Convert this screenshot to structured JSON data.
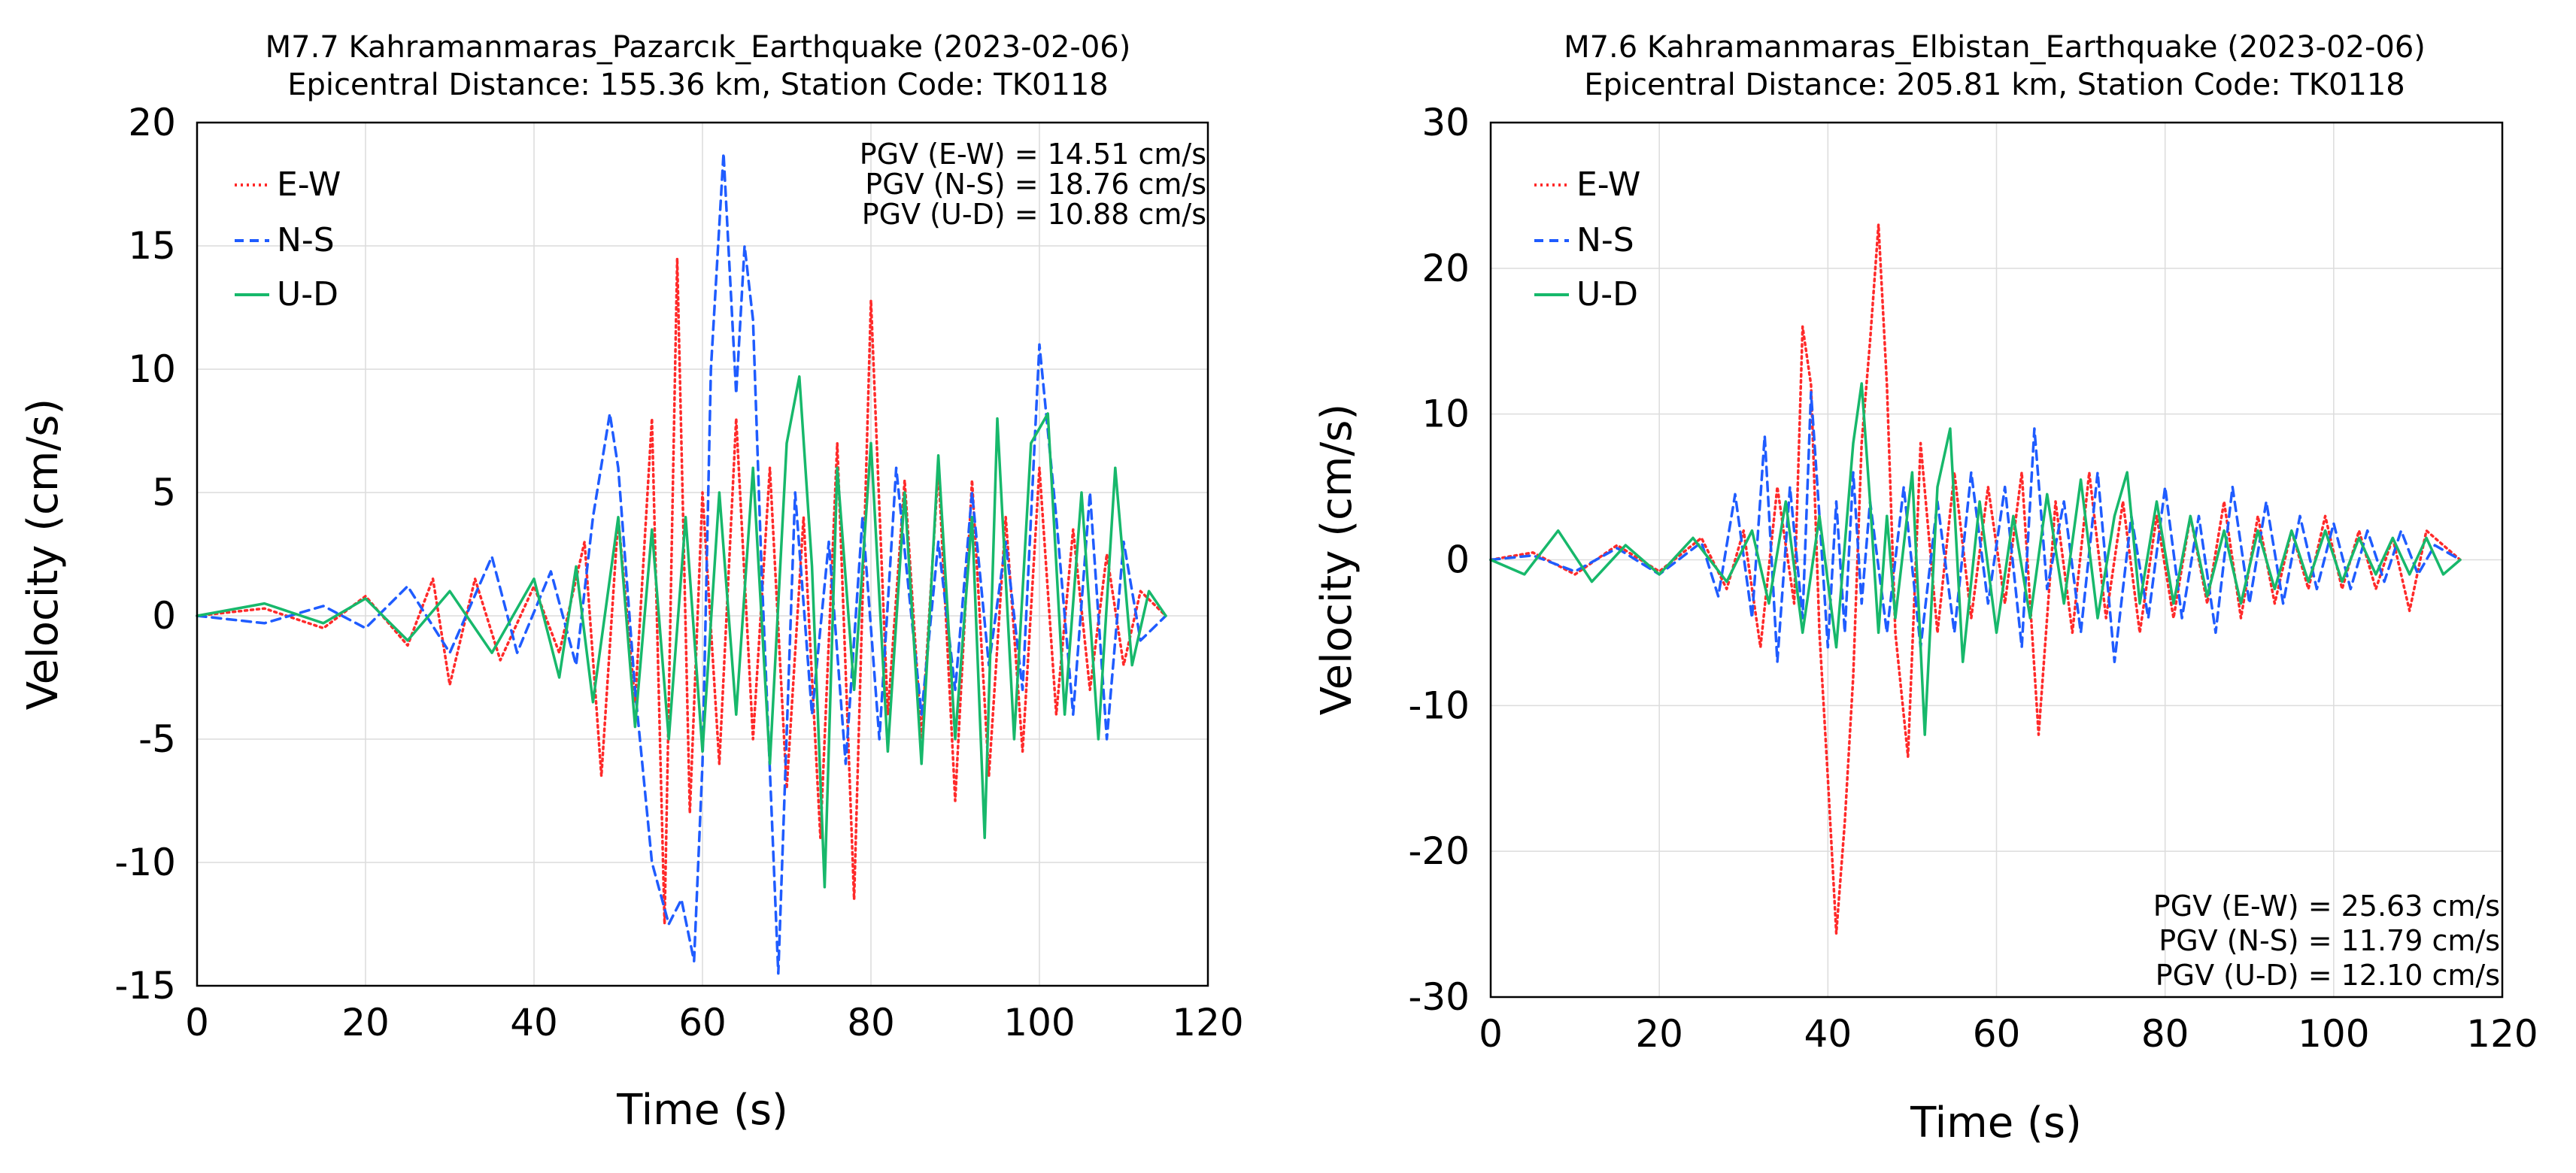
{
  "colors": {
    "E-W": "#ff2a2a",
    "N-S": "#1f5cff",
    "U-D": "#17b86b",
    "grid": "#dcdcdc",
    "axis": "#000000"
  },
  "chart_data": [
    {
      "type": "line",
      "title": "M7.7 Kahramanmaras_Pazarcık_Earthquake (2023-02-06)",
      "subtitle": "Epicentral Distance: 155.36 km, Station Code: TK0118",
      "xlabel": "Time (s)",
      "ylabel": "Velocity (cm/s)",
      "xlim": [
        0,
        120
      ],
      "ylim": [
        -15,
        20
      ],
      "xticks": [
        0,
        20,
        40,
        60,
        80,
        100,
        120
      ],
      "yticks": [
        -15,
        -10,
        -5,
        0,
        5,
        10,
        15,
        20
      ],
      "grid": true,
      "legend_position": "top-left",
      "annotation_position": "top-right",
      "annotations": [
        "PGV (E-W) = 14.51 cm/s",
        "PGV (N-S) = 18.76 cm/s",
        "PGV (U-D) = 10.88 cm/s"
      ],
      "series": [
        {
          "name": "E-W",
          "style": "dotted",
          "x": [
            0,
            8,
            15,
            20,
            25,
            28,
            30,
            33,
            36,
            40,
            43,
            46,
            48,
            50,
            52,
            54,
            55.5,
            57,
            58.5,
            60,
            62,
            64,
            66,
            68,
            70,
            72,
            74,
            76,
            78,
            80,
            82,
            84,
            86,
            88,
            90,
            92,
            94,
            96,
            98,
            100,
            102,
            104,
            106,
            108,
            110,
            112,
            115
          ],
          "y": [
            0,
            0.3,
            -0.5,
            0.8,
            -1.2,
            1.5,
            -2.8,
            1.5,
            -1.8,
            1.2,
            -1.5,
            3.0,
            -6.5,
            4.0,
            -3.5,
            8.0,
            -12.5,
            14.5,
            -8.0,
            5.0,
            -6.0,
            8.0,
            -5.0,
            6.0,
            -7.0,
            4.0,
            -9.0,
            7.0,
            -11.5,
            12.8,
            -4.0,
            5.5,
            -5.0,
            6.0,
            -7.5,
            5.5,
            -6.5,
            4.0,
            -5.5,
            6.0,
            -4.0,
            3.5,
            -3.0,
            2.5,
            -2.0,
            1.0,
            0
          ]
        },
        {
          "name": "N-S",
          "style": "dashed",
          "x": [
            0,
            8,
            15,
            20,
            25,
            30,
            35,
            38,
            42,
            45,
            47,
            49,
            50,
            52,
            54,
            56,
            57.5,
            59,
            60,
            61,
            62.5,
            64,
            65,
            66,
            67,
            69,
            71,
            73,
            75,
            77,
            79,
            81,
            83,
            86,
            88,
            90,
            92,
            94,
            96,
            98,
            100,
            102,
            104,
            106,
            108,
            110,
            112,
            115
          ],
          "y": [
            0,
            -0.3,
            0.4,
            -0.5,
            1.2,
            -1.5,
            2.4,
            -1.5,
            1.8,
            -2.0,
            4.0,
            8.2,
            6.0,
            -3.0,
            -10.0,
            -12.5,
            -11.5,
            -14.0,
            -6.0,
            10.0,
            18.76,
            9.0,
            15.0,
            12.0,
            2.0,
            -14.5,
            5.0,
            -4.0,
            3.0,
            -6.0,
            4.0,
            -5.0,
            6.0,
            -4.0,
            3.0,
            -3.0,
            5.0,
            -2.0,
            3.0,
            -3.0,
            11.0,
            4.0,
            -4.0,
            5.0,
            -5.0,
            3.0,
            -1.0,
            0
          ]
        },
        {
          "name": "U-D",
          "style": "solid",
          "x": [
            0,
            8,
            15,
            20,
            25,
            30,
            35,
            40,
            43,
            45,
            47,
            50,
            52,
            54,
            56,
            58,
            60,
            62,
            64,
            66,
            68,
            70,
            71.5,
            73,
            74.5,
            76,
            78,
            80,
            82,
            84,
            86,
            88,
            90,
            92,
            93.5,
            95,
            97,
            99,
            101,
            103,
            105,
            107,
            109,
            111,
            113,
            115
          ],
          "y": [
            0,
            0.5,
            -0.3,
            0.7,
            -1.0,
            1.0,
            -1.5,
            1.5,
            -2.5,
            2.0,
            -3.5,
            4.0,
            -4.5,
            3.5,
            -5.0,
            4.0,
            -5.5,
            5.0,
            -4.0,
            6.0,
            -6.0,
            7.0,
            9.7,
            2.0,
            -11.0,
            6.0,
            -3.0,
            7.0,
            -5.5,
            5.0,
            -6.0,
            6.5,
            -5.0,
            4.0,
            -9.0,
            8.0,
            -5.0,
            7.0,
            8.2,
            -4.0,
            5.0,
            -5.0,
            6.0,
            -2.0,
            1.0,
            0
          ]
        }
      ]
    },
    {
      "type": "line",
      "title": "M7.6 Kahramanmaras_Elbistan_Earthquake (2023-02-06)",
      "subtitle": "Epicentral Distance: 205.81 km, Station Code: TK0118",
      "xlabel": "Time (s)",
      "ylabel": "Velocity (cm/s)",
      "xlim": [
        0,
        120
      ],
      "ylim": [
        -30,
        30
      ],
      "xticks": [
        0,
        20,
        40,
        60,
        80,
        100,
        120
      ],
      "yticks": [
        -30,
        -20,
        -10,
        0,
        10,
        20,
        30
      ],
      "grid": true,
      "legend_position": "top-left",
      "annotation_position": "bottom-right",
      "annotations": [
        "PGV (E-W) = 25.63 cm/s",
        "PGV (N-S) = 11.79 cm/s",
        "PGV (U-D) = 12.10 cm/s"
      ],
      "series": [
        {
          "name": "E-W",
          "style": "dotted",
          "x": [
            0,
            5,
            10,
            15,
            20,
            25,
            28,
            30,
            32,
            34,
            36,
            37,
            38,
            39,
            40,
            41,
            42,
            43,
            44,
            45,
            46,
            47,
            48,
            49.5,
            51,
            53,
            55,
            57,
            59,
            61,
            63,
            65,
            67,
            69,
            71,
            73,
            75,
            77,
            79,
            81,
            83,
            85,
            87,
            89,
            91,
            93,
            95,
            97,
            99,
            101,
            103,
            105,
            107,
            109,
            111,
            113,
            115
          ],
          "y": [
            0,
            0.5,
            -1.0,
            1.0,
            -0.8,
            1.5,
            -2.0,
            2.0,
            -6.0,
            5.0,
            -3.0,
            16.0,
            12.0,
            -5.0,
            -15.0,
            -25.63,
            -18.0,
            -8.0,
            8.0,
            15.0,
            23.0,
            12.0,
            -5.0,
            -13.5,
            8.0,
            -5.0,
            6.0,
            -4.0,
            5.0,
            -3.0,
            6.0,
            -12.0,
            4.0,
            -5.0,
            6.0,
            -4.0,
            4.0,
            -5.0,
            3.0,
            -4.0,
            3.0,
            -3.0,
            4.0,
            -4.0,
            3.0,
            -3.0,
            2.0,
            -2.0,
            3.0,
            -2.0,
            2.0,
            -2.0,
            1.5,
            -3.5,
            2.0,
            1.0,
            0
          ]
        },
        {
          "name": "N-S",
          "style": "dashed",
          "x": [
            0,
            5,
            10,
            15,
            20,
            25,
            27,
            29,
            31,
            32.5,
            34,
            35.5,
            37,
            38,
            39,
            40,
            41,
            42,
            43,
            44,
            45,
            47,
            49,
            51,
            53,
            55,
            57,
            59,
            61,
            63,
            64.5,
            66,
            68,
            70,
            72,
            74,
            76,
            78,
            80,
            82,
            84,
            86,
            88,
            90,
            92,
            94,
            96,
            98,
            100,
            102,
            104,
            106,
            108,
            110,
            112,
            115
          ],
          "y": [
            0,
            0.3,
            -0.8,
            0.8,
            -1.0,
            1.2,
            -2.5,
            4.5,
            -4.0,
            8.5,
            -7.0,
            5.0,
            -4.0,
            11.5,
            3.0,
            -6.0,
            4.0,
            -5.0,
            6.0,
            -3.0,
            4.0,
            -5.0,
            5.0,
            -6.0,
            4.0,
            -5.0,
            6.0,
            -3.0,
            5.0,
            -6.0,
            9.0,
            -2.0,
            4.0,
            -5.0,
            6.0,
            -7.0,
            3.0,
            -4.0,
            5.0,
            -4.0,
            3.0,
            -5.0,
            5.0,
            -3.0,
            4.0,
            -3.0,
            3.0,
            -2.0,
            2.5,
            -2.0,
            2.0,
            -1.5,
            2.0,
            -1.0,
            1.0,
            0
          ]
        },
        {
          "name": "U-D",
          "style": "solid",
          "x": [
            0,
            4,
            8,
            12,
            16,
            20,
            24,
            28,
            31,
            33,
            35,
            37,
            39,
            41,
            43,
            44,
            45,
            46,
            47,
            48,
            50,
            51.5,
            53,
            54.5,
            56,
            58,
            60,
            62,
            64,
            66,
            68,
            70,
            72,
            74,
            75.5,
            77,
            79,
            81,
            83,
            85,
            87,
            89,
            91,
            93,
            95,
            97,
            99,
            101,
            103,
            105,
            107,
            109,
            111,
            113,
            115
          ],
          "y": [
            0,
            -1.0,
            2.0,
            -1.5,
            1.0,
            -1.0,
            1.5,
            -1.5,
            2.0,
            -3.0,
            4.0,
            -5.0,
            3.0,
            -6.0,
            8.0,
            12.1,
            4.0,
            -5.0,
            3.0,
            -4.0,
            6.0,
            -12.0,
            5.0,
            9.0,
            -7.0,
            4.0,
            -5.0,
            3.0,
            -4.0,
            4.5,
            -3.0,
            5.5,
            -4.0,
            3.0,
            6.0,
            -3.0,
            4.0,
            -3.0,
            3.0,
            -2.5,
            2.0,
            -3.0,
            2.0,
            -2.0,
            2.0,
            -1.5,
            2.0,
            -1.5,
            1.5,
            -1.0,
            1.5,
            -1.0,
            1.5,
            -1.0,
            0
          ]
        }
      ]
    }
  ]
}
